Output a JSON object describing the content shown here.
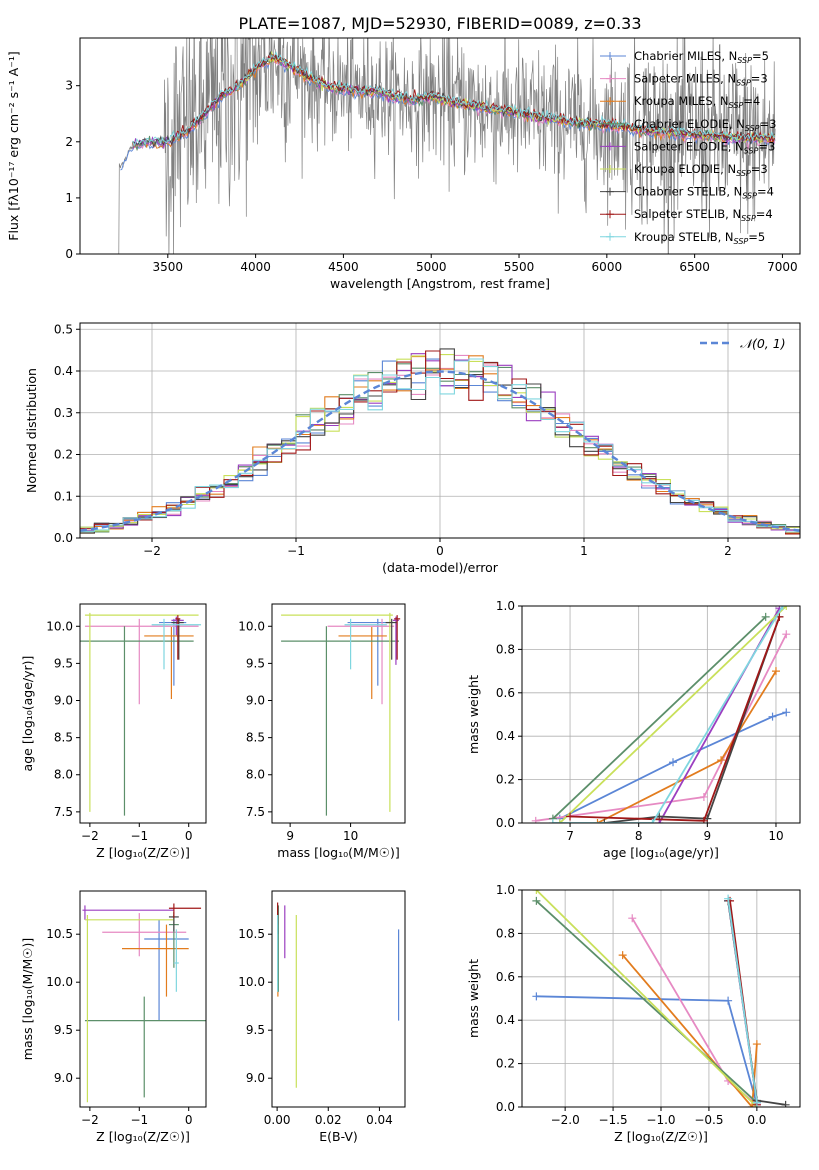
{
  "figure": {
    "title": "PLATE=1087, MJD=52930, FIBERID=0089, z=0.33"
  },
  "chart_data": [
    {
      "id": "spectrum",
      "type": "line",
      "title": "PLATE=1087, MJD=52930, FIBERID=0089, z=0.33",
      "xlabel": "wavelength [Angstrom, rest frame]",
      "ylabel": "Flux [fλ10⁻¹⁷ erg cm⁻² s⁻¹ A⁻¹]",
      "xlim": [
        3000,
        7100
      ],
      "ylim": [
        0,
        3.85
      ],
      "xticks": [
        3500,
        4000,
        4500,
        5000,
        5500,
        6000,
        6500,
        7000
      ],
      "yticks": [
        0,
        1,
        2,
        3
      ],
      "grid": false,
      "legend": "upper right",
      "data_anchors": {
        "x": [
          3230,
          3300,
          3400,
          3500,
          3600,
          3700,
          3800,
          3900,
          4000,
          4100,
          4200,
          4300,
          4400,
          4500,
          4600,
          4700,
          4800,
          4900,
          5000,
          5200,
          5400,
          5600,
          5800,
          6000,
          6200,
          6400,
          6600,
          6800,
          6950
        ],
        "y": [
          1.55,
          1.95,
          2.0,
          2.0,
          2.15,
          2.45,
          2.8,
          3.0,
          3.3,
          3.5,
          3.35,
          3.15,
          3.0,
          2.95,
          2.9,
          2.9,
          2.8,
          2.75,
          2.8,
          2.65,
          2.55,
          2.45,
          2.35,
          2.3,
          2.2,
          2.15,
          2.1,
          2.05,
          2.05
        ]
      },
      "series": [
        {
          "name": "Chabrier MILES, N_SSP=5",
          "color": "#5b86d6"
        },
        {
          "name": "Salpeter MILES, N_SSP=3",
          "color": "#e68ac3"
        },
        {
          "name": "Kroupa MILES, N_SSP=4",
          "color": "#e27c1e"
        },
        {
          "name": "Chabrier ELODIE, N_SSP=3",
          "color": "#5c8f6a"
        },
        {
          "name": "Salpeter ELODIE, N_SSP=3",
          "color": "#9b3fc0"
        },
        {
          "name": "Kroupa ELODIE, N_SSP=3",
          "color": "#c9e05a"
        },
        {
          "name": "Chabrier STELIB, N_SSP=4",
          "color": "#444444"
        },
        {
          "name": "Salpeter STELIB, N_SSP=4",
          "color": "#a01818"
        },
        {
          "name": "Kroupa STELIB, N_SSP=5",
          "color": "#7fd6df"
        }
      ]
    },
    {
      "id": "residuals",
      "type": "line",
      "xlabel": "(data-model)/error",
      "ylabel": "Normed distribution",
      "xlim": [
        -2.5,
        2.5
      ],
      "ylim": [
        0,
        0.515
      ],
      "xticks": [
        -2,
        -1,
        0,
        1,
        2
      ],
      "yticks": [
        0.0,
        0.1,
        0.2,
        0.3,
        0.4,
        0.5
      ],
      "grid": true,
      "legend": "upper right",
      "reference_label": "𝒩(0, 1)",
      "bin_edges_step": 0.1
    },
    {
      "id": "age-vs-Z",
      "type": "scatter",
      "xlabel": "Z [log₁₀(Z/Z☉)]",
      "ylabel": "age  [log₁₀(age/yr)]",
      "xlim": [
        -2.2,
        0.35
      ],
      "ylim": [
        7.35,
        10.3
      ],
      "xticks": [
        -2,
        -1,
        0
      ],
      "yticks": [
        7.5,
        8.0,
        8.5,
        9.0,
        9.5,
        10.0
      ],
      "grid": false,
      "points": [
        {
          "x": -0.3,
          "y": 10.05,
          "xl": 0.3,
          "xh": 0.25,
          "yl": 0.85,
          "yh": 0.05,
          "c": 0
        },
        {
          "x": -1.0,
          "y": 10.0,
          "xl": 1.1,
          "xh": 1.2,
          "yl": 1.05,
          "yh": 0.1,
          "c": 1
        },
        {
          "x": -0.35,
          "y": 9.87,
          "xl": 0.55,
          "xh": 0.45,
          "yl": 0.85,
          "yh": 0.12,
          "c": 2
        },
        {
          "x": -1.3,
          "y": 9.8,
          "xl": 0.95,
          "xh": 1.4,
          "yl": 2.35,
          "yh": 0.2,
          "c": 3
        },
        {
          "x": -0.25,
          "y": 10.08,
          "xl": 0.1,
          "xh": 0.15,
          "yl": 0.2,
          "yh": 0.05,
          "c": 4
        },
        {
          "x": -2.0,
          "y": 10.15,
          "xl": 0.1,
          "xh": 2.2,
          "yl": 2.65,
          "yh": 0.03,
          "c": 5
        },
        {
          "x": -0.2,
          "y": 10.05,
          "xl": 0.15,
          "xh": 0.1,
          "yl": 0.5,
          "yh": 0.05,
          "c": 6
        },
        {
          "x": -0.22,
          "y": 10.1,
          "xl": 0.05,
          "xh": 0.05,
          "yl": 0.55,
          "yh": 0.05,
          "c": 7
        },
        {
          "x": -0.5,
          "y": 10.02,
          "xl": 0.25,
          "xh": 0.75,
          "yl": 0.6,
          "yh": 0.08,
          "c": 8
        }
      ]
    },
    {
      "id": "age-vs-mass",
      "type": "scatter",
      "xlabel": "mass [log₁₀(M/M☉)]",
      "ylabel": "",
      "xlim": [
        8.7,
        10.9
      ],
      "ylim": [
        7.35,
        10.3
      ],
      "xticks": [
        9,
        10
      ],
      "yticks": [
        7.5,
        8.0,
        8.5,
        9.0,
        9.5,
        10.0
      ],
      "grid": false,
      "points": [
        {
          "x": 10.45,
          "y": 10.05,
          "xl": 0.5,
          "xh": 0.2,
          "yl": 0.85,
          "yh": 0.05,
          "c": 0
        },
        {
          "x": 10.52,
          "y": 10.0,
          "xl": 0.9,
          "xh": 0.2,
          "yl": 1.05,
          "yh": 0.1,
          "c": 1
        },
        {
          "x": 10.35,
          "y": 9.87,
          "xl": 0.55,
          "xh": 0.25,
          "yl": 0.85,
          "yh": 0.12,
          "c": 2
        },
        {
          "x": 9.6,
          "y": 9.8,
          "xl": 0.75,
          "xh": 1.2,
          "yl": 2.35,
          "yh": 0.2,
          "c": 3
        },
        {
          "x": 10.75,
          "y": 10.08,
          "xl": 0.05,
          "xh": 0.05,
          "yl": 0.6,
          "yh": 0.05,
          "c": 4
        },
        {
          "x": 10.65,
          "y": 10.15,
          "xl": 1.8,
          "xh": 0.05,
          "yl": 2.65,
          "yh": 0.03,
          "c": 5
        },
        {
          "x": 10.68,
          "y": 10.05,
          "xl": 0.1,
          "xh": 0.08,
          "yl": 0.5,
          "yh": 0.05,
          "c": 6
        },
        {
          "x": 10.77,
          "y": 10.1,
          "xl": 0.05,
          "xh": 0.05,
          "yl": 0.55,
          "yh": 0.05,
          "c": 7
        },
        {
          "x": 10.0,
          "y": 10.02,
          "xl": 0.1,
          "xh": 0.6,
          "yl": 0.6,
          "yh": 0.08,
          "c": 8
        }
      ]
    },
    {
      "id": "weight-vs-age",
      "type": "line",
      "xlabel": "age  [log₁₀(age/yr)]",
      "ylabel": "mass weight",
      "xlim": [
        6.3,
        10.35
      ],
      "ylim": [
        0,
        1.0
      ],
      "xticks": [
        7,
        8,
        9,
        10
      ],
      "yticks": [
        0.0,
        0.2,
        0.4,
        0.6,
        0.8,
        1.0
      ],
      "grid": true,
      "series": [
        {
          "c": 0,
          "x": [
            6.85,
            8.5,
            9.95,
            10.15
          ],
          "y": [
            0.02,
            0.28,
            0.49,
            0.51
          ]
        },
        {
          "c": 1,
          "x": [
            6.5,
            8.95,
            10.15
          ],
          "y": [
            0.01,
            0.12,
            0.87
          ]
        },
        {
          "c": 2,
          "x": [
            7.4,
            9.2,
            10.0
          ],
          "y": [
            0.0,
            0.29,
            0.7
          ]
        },
        {
          "c": 3,
          "x": [
            6.75,
            9.85
          ],
          "y": [
            0.02,
            0.95
          ]
        },
        {
          "c": 4,
          "x": [
            8.3,
            10.05
          ],
          "y": [
            0.0,
            0.99
          ]
        },
        {
          "c": 5,
          "x": [
            6.85,
            10.15
          ],
          "y": [
            0.0,
            1.0
          ]
        },
        {
          "c": 6,
          "x": [
            7.5,
            8.3,
            9.0,
            10.05
          ],
          "y": [
            0.0,
            0.03,
            0.02,
            0.95
          ]
        },
        {
          "c": 7,
          "x": [
            7.0,
            8.95,
            10.05
          ],
          "y": [
            0.03,
            0.01,
            0.95
          ]
        },
        {
          "c": 8,
          "x": [
            6.75,
            8.2,
            10.1
          ],
          "y": [
            0.0,
            0.0,
            1.0
          ]
        }
      ]
    },
    {
      "id": "mass-vs-Z",
      "type": "scatter",
      "xlabel": "Z [log₁₀(Z/Z☉)]",
      "ylabel": "mass [log₁₀(M/M☉)]",
      "xlim": [
        -2.2,
        0.35
      ],
      "ylim": [
        8.7,
        10.95
      ],
      "xticks": [
        -2,
        -1,
        0
      ],
      "yticks": [
        9.0,
        9.5,
        10.0,
        10.5
      ],
      "grid": false,
      "points": [
        {
          "x": -0.6,
          "y": 10.45,
          "xl": 0.3,
          "xh": 0.6,
          "yl": 0.85,
          "yh": 0.2,
          "c": 0
        },
        {
          "x": -1.0,
          "y": 10.52,
          "xl": 0.75,
          "xh": 0.95,
          "yl": 0.25,
          "yh": 0.2,
          "c": 1
        },
        {
          "x": -0.45,
          "y": 10.35,
          "xl": 0.9,
          "xh": 0.45,
          "yl": 0.5,
          "yh": 0.25,
          "c": 2
        },
        {
          "x": -0.3,
          "y": 10.6,
          "xl": 0.1,
          "xh": 0.1,
          "yl": 0.45,
          "yh": 0.1,
          "c": 3
        },
        {
          "x": -0.9,
          "y": 9.6,
          "xl": 1.2,
          "xh": 1.35,
          "yl": 0.8,
          "yh": 0.25,
          "c": 3
        },
        {
          "x": -2.1,
          "y": 10.75,
          "xl": 0.05,
          "xh": 1.8,
          "yl": 0.1,
          "yh": 0.05,
          "c": 4
        },
        {
          "x": -2.05,
          "y": 10.65,
          "xl": 0.05,
          "xh": 1.75,
          "yl": 1.9,
          "yh": 0.05,
          "c": 5
        },
        {
          "x": -0.3,
          "y": 10.68,
          "xl": 0.1,
          "xh": 0.1,
          "yl": 0.15,
          "yh": 0.05,
          "c": 6
        },
        {
          "x": -0.3,
          "y": 10.77,
          "xl": 0.1,
          "xh": 0.55,
          "yl": 0.1,
          "yh": 0.05,
          "c": 7
        },
        {
          "x": -0.25,
          "y": 10.2,
          "xl": 0.05,
          "xh": 0.05,
          "yl": 0.3,
          "yh": 0.35,
          "c": 8
        }
      ]
    },
    {
      "id": "mass-vs-ebv",
      "type": "scatter",
      "xlabel": "E(B-V)",
      "ylabel": "",
      "xlim": [
        -0.002,
        0.05
      ],
      "ylim": [
        8.7,
        10.95
      ],
      "xticks": [
        0.0,
        0.02,
        0.04
      ],
      "yticks": [
        9.0,
        9.5,
        10.0,
        10.5
      ],
      "grid": false,
      "points": [
        {
          "x": 0.0475,
          "y": 10.45,
          "xl": 0,
          "xh": 0,
          "yl": 0.85,
          "yh": 0.1,
          "c": 0
        },
        {
          "x": 0.0002,
          "y": 10.52,
          "xl": 0,
          "xh": 0,
          "yl": 0.5,
          "yh": 0.2,
          "c": 1
        },
        {
          "x": 0.0003,
          "y": 10.35,
          "xl": 0,
          "xh": 0,
          "yl": 0.5,
          "yh": 0.3,
          "c": 2
        },
        {
          "x": 0.0005,
          "y": 10.5,
          "xl": 0,
          "xh": 0,
          "yl": 0.6,
          "yh": 0.3,
          "c": 3
        },
        {
          "x": 0.003,
          "y": 10.6,
          "xl": 0,
          "xh": 0,
          "yl": 0.35,
          "yh": 0.2,
          "c": 4
        },
        {
          "x": 0.0075,
          "y": 10.5,
          "xl": 0,
          "xh": 0,
          "yl": 1.6,
          "yh": 0.2,
          "c": 5
        },
        {
          "x": 0.0002,
          "y": 10.7,
          "xl": 0,
          "xh": 0,
          "yl": 0.2,
          "yh": 0.1,
          "c": 6
        },
        {
          "x": 0.0002,
          "y": 10.75,
          "xl": 0,
          "xh": 0,
          "yl": 0.15,
          "yh": 0.08,
          "c": 7
        },
        {
          "x": 0.0002,
          "y": 10.4,
          "xl": 0,
          "xh": 0,
          "yl": 0.5,
          "yh": 0.3,
          "c": 8
        }
      ]
    },
    {
      "id": "weight-vs-Z",
      "type": "line",
      "xlabel": "Z [log₁₀(Z/Z☉)]",
      "ylabel": "mass weight",
      "xlim": [
        -2.45,
        0.45
      ],
      "ylim": [
        0,
        1.0
      ],
      "xticks": [
        -2.0,
        -1.5,
        -1.0,
        -0.5,
        0.0
      ],
      "yticks": [
        0.0,
        0.2,
        0.4,
        0.6,
        0.8,
        1.0
      ],
      "grid": true,
      "series": [
        {
          "c": 0,
          "x": [
            -2.3,
            -0.3,
            0.0
          ],
          "y": [
            0.51,
            0.49,
            0.01
          ]
        },
        {
          "c": 1,
          "x": [
            -1.3,
            -0.3,
            0.0
          ],
          "y": [
            0.87,
            0.12,
            0.01
          ]
        },
        {
          "c": 2,
          "x": [
            -1.4,
            -0.05,
            0.0
          ],
          "y": [
            0.7,
            0.0,
            0.29
          ]
        },
        {
          "c": 3,
          "x": [
            -2.3,
            0.0
          ],
          "y": [
            0.95,
            0.02
          ]
        },
        {
          "c": 4,
          "x": [
            -0.3,
            0.0
          ],
          "y": [
            0.95,
            0.02
          ]
        },
        {
          "c": 5,
          "x": [
            -2.3,
            0.0
          ],
          "y": [
            1.0,
            0.0
          ]
        },
        {
          "c": 6,
          "x": [
            -0.3,
            0.0,
            0.3
          ],
          "y": [
            0.95,
            0.03,
            0.01
          ]
        },
        {
          "c": 7,
          "x": [
            -0.28,
            0.0
          ],
          "y": [
            0.95,
            0.01
          ]
        },
        {
          "c": 8,
          "x": [
            -0.3,
            0.0
          ],
          "y": [
            0.96,
            0.02
          ]
        }
      ]
    }
  ]
}
